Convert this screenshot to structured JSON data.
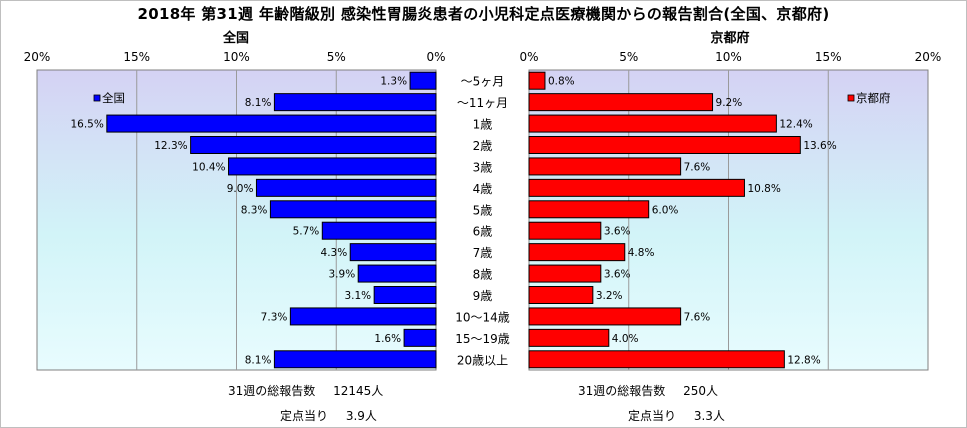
{
  "title": "2018年 第31週 年齢階級別 感染性胃腸炎患者の小児科定点医療機関からの報告割合(全国、京都府)",
  "colors": {
    "national": "#0000ff",
    "kyoto": "#ff0000",
    "border": "#000000"
  },
  "chart_data": {
    "type": "bar",
    "orientation": "horizontal",
    "categories": [
      "～5ヶ月",
      "～11ヶ月",
      "1歳",
      "2歳",
      "3歳",
      "4歳",
      "5歳",
      "6歳",
      "7歳",
      "8歳",
      "9歳",
      "10～14歳",
      "15～19歳",
      "20歳以上"
    ],
    "xlim": [
      0,
      20
    ],
    "tick_labels": [
      "20%",
      "15%",
      "10%",
      "5%",
      "0%"
    ],
    "tick_labels_right": [
      "0%",
      "5%",
      "10%",
      "15%",
      "20%"
    ],
    "grid": true,
    "panels": [
      {
        "title": "全国",
        "legend": "全国",
        "legend_position": "top-left",
        "direction": "left",
        "values": [
          1.3,
          8.1,
          16.5,
          12.3,
          10.4,
          9.0,
          8.3,
          5.7,
          4.3,
          3.9,
          3.1,
          7.3,
          1.6,
          8.1
        ],
        "labels": [
          "1.3%",
          "8.1%",
          "16.5%",
          "12.3%",
          "10.4%",
          "9.0%",
          "8.3%",
          "5.7%",
          "4.3%",
          "3.9%",
          "3.1%",
          "7.3%",
          "1.6%",
          "8.1%"
        ]
      },
      {
        "title": "京都府",
        "legend": "京都府",
        "legend_position": "top-right",
        "direction": "right",
        "values": [
          0.8,
          9.2,
          12.4,
          13.6,
          7.6,
          10.8,
          6.0,
          3.6,
          4.8,
          3.6,
          3.2,
          7.6,
          4.0,
          12.8
        ],
        "labels": [
          "0.8%",
          "9.2%",
          "12.4%",
          "13.6%",
          "7.6%",
          "10.8%",
          "6.0%",
          "3.6%",
          "4.8%",
          "3.6%",
          "3.2%",
          "7.6%",
          "4.0%",
          "12.8%"
        ]
      }
    ]
  },
  "footer": {
    "national": {
      "total_label": "31週の総報告数",
      "total_value": "12145人",
      "per_label": "定点当り",
      "per_value": "3.9人"
    },
    "kyoto": {
      "total_label": "31週の総報告数",
      "total_value": "250人",
      "per_label": "定点当り",
      "per_value": "3.3人"
    }
  }
}
